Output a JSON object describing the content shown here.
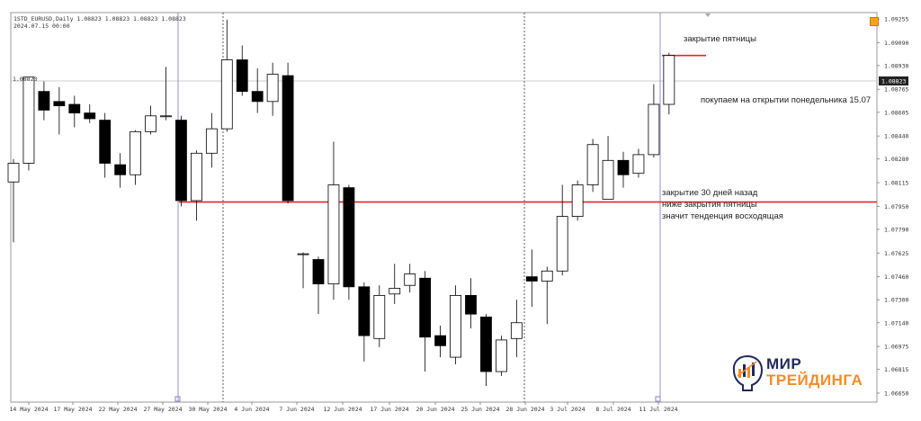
{
  "header": {
    "title": "1STD_EURUSD,Daily  1.08823 1.08823 1.08823 1.08823",
    "datetime": "2024.07.15 00:00"
  },
  "current_price": "1.08823",
  "left_price_label": "1.08823",
  "annotations": {
    "friday_close": "закрытие пятницы",
    "buy_monday": "покупаем на открытии понедельника 15.07",
    "close_30_days": "закрытие 30 дней назад",
    "below_friday": "ниже закрытия пятницы",
    "uptrend": "значит тенденция восходящая"
  },
  "logo": {
    "line1": "МИР",
    "line2": "ТРЕЙДИНГА"
  },
  "colors": {
    "bull": "#ffffff",
    "bear": "#000000",
    "level": "#e8242c",
    "vline_period": "#8a84c8",
    "vline_dotted": "#333333"
  },
  "chart_data": {
    "type": "candlestick",
    "symbol": "1STD_EURUSD",
    "timeframe": "Daily",
    "y_ticks": [
      "1.09255",
      "1.09090",
      "1.08930",
      "1.08765",
      "1.08605",
      "1.08440",
      "1.08280",
      "1.08115",
      "1.07950",
      "1.07790",
      "1.07625",
      "1.07460",
      "1.07300",
      "1.07140",
      "1.06975",
      "1.06815",
      "1.06650"
    ],
    "x_ticks": [
      "14 May 2024",
      "17 May 2024",
      "22 May 2024",
      "27 May 2024",
      "30 May 2024",
      "4 Jun 2024",
      "7 Jun 2024",
      "12 Jun 2024",
      "17 Jun 2024",
      "20 Jun 2024",
      "25 Jun 2024",
      "28 Jun 2024",
      "3 Jul 2024",
      "8 Jul 2024",
      "11 Jul 2024"
    ],
    "levels": [
      {
        "label": "закрытие пятницы",
        "value": 1.09
      },
      {
        "label": "закрытие 30 дней назад",
        "value": 1.0798
      }
    ],
    "candles": [
      {
        "o": 1.0812,
        "h": 1.0828,
        "l": 1.077,
        "c": 1.0825
      },
      {
        "o": 1.0825,
        "h": 1.0885,
        "l": 1.082,
        "c": 1.0885
      },
      {
        "o": 1.0875,
        "h": 1.0882,
        "l": 1.0855,
        "c": 1.0862
      },
      {
        "o": 1.0868,
        "h": 1.0878,
        "l": 1.0845,
        "c": 1.0865
      },
      {
        "o": 1.0866,
        "h": 1.0872,
        "l": 1.085,
        "c": 1.086
      },
      {
        "o": 1.086,
        "h": 1.0866,
        "l": 1.0853,
        "c": 1.0856
      },
      {
        "o": 1.0855,
        "h": 1.086,
        "l": 1.0815,
        "c": 1.0825
      },
      {
        "o": 1.0824,
        "h": 1.0832,
        "l": 1.0808,
        "c": 1.0817
      },
      {
        "o": 1.0817,
        "h": 1.0848,
        "l": 1.081,
        "c": 1.0847
      },
      {
        "o": 1.0847,
        "h": 1.0865,
        "l": 1.0845,
        "c": 1.0858
      },
      {
        "o": 1.0858,
        "h": 1.0892,
        "l": 1.0855,
        "c": 1.0858
      },
      {
        "o": 1.0855,
        "h": 1.0858,
        "l": 1.0795,
        "c": 1.0799
      },
      {
        "o": 1.0799,
        "h": 1.0834,
        "l": 1.0785,
        "c": 1.0832
      },
      {
        "o": 1.0832,
        "h": 1.086,
        "l": 1.0822,
        "c": 1.0849
      },
      {
        "o": 1.0849,
        "h": 1.0925,
        "l": 1.0847,
        "c": 1.0897
      },
      {
        "o": 1.0897,
        "h": 1.0907,
        "l": 1.0872,
        "c": 1.0875
      },
      {
        "o": 1.0875,
        "h": 1.0891,
        "l": 1.086,
        "c": 1.0868
      },
      {
        "o": 1.0868,
        "h": 1.0895,
        "l": 1.0858,
        "c": 1.0887
      },
      {
        "o": 1.0886,
        "h": 1.0895,
        "l": 1.0797,
        "c": 1.0799
      },
      {
        "o": 1.0762,
        "h": 1.0763,
        "l": 1.0738,
        "c": 1.0762
      },
      {
        "o": 1.0758,
        "h": 1.076,
        "l": 1.072,
        "c": 1.0741
      },
      {
        "o": 1.0741,
        "h": 1.084,
        "l": 1.073,
        "c": 1.081
      },
      {
        "o": 1.0808,
        "h": 1.081,
        "l": 1.073,
        "c": 1.0739
      },
      {
        "o": 1.0739,
        "h": 1.0742,
        "l": 1.0687,
        "c": 1.0705
      },
      {
        "o": 1.0703,
        "h": 1.074,
        "l": 1.0697,
        "c": 1.0733
      },
      {
        "o": 1.0734,
        "h": 1.0755,
        "l": 1.0727,
        "c": 1.0738
      },
      {
        "o": 1.074,
        "h": 1.0755,
        "l": 1.0735,
        "c": 1.0748
      },
      {
        "o": 1.0745,
        "h": 1.075,
        "l": 1.068,
        "c": 1.0704
      },
      {
        "o": 1.0705,
        "h": 1.0712,
        "l": 1.069,
        "c": 1.0698
      },
      {
        "o": 1.069,
        "h": 1.074,
        "l": 1.0685,
        "c": 1.0733
      },
      {
        "o": 1.0733,
        "h": 1.0745,
        "l": 1.071,
        "c": 1.072
      },
      {
        "o": 1.0718,
        "h": 1.072,
        "l": 1.067,
        "c": 1.068
      },
      {
        "o": 1.068,
        "h": 1.0705,
        "l": 1.0677,
        "c": 1.0702
      },
      {
        "o": 1.0703,
        "h": 1.073,
        "l": 1.069,
        "c": 1.0714
      },
      {
        "o": 1.0746,
        "h": 1.0765,
        "l": 1.0725,
        "c": 1.0743
      },
      {
        "o": 1.0743,
        "h": 1.0753,
        "l": 1.0713,
        "c": 1.075
      },
      {
        "o": 1.075,
        "h": 1.081,
        "l": 1.0747,
        "c": 1.0788
      },
      {
        "o": 1.0788,
        "h": 1.0813,
        "l": 1.0785,
        "c": 1.081
      },
      {
        "o": 1.081,
        "h": 1.0842,
        "l": 1.0805,
        "c": 1.0838
      },
      {
        "o": 1.08,
        "h": 1.0844,
        "l": 1.08,
        "c": 1.0827
      },
      {
        "o": 1.0827,
        "h": 1.0833,
        "l": 1.0808,
        "c": 1.0817
      },
      {
        "o": 1.0818,
        "h": 1.0835,
        "l": 1.0815,
        "c": 1.0831
      },
      {
        "o": 1.0831,
        "h": 1.088,
        "l": 1.0829,
        "c": 1.0866
      },
      {
        "o": 1.0866,
        "h": 1.0902,
        "l": 1.0859,
        "c": 1.09
      }
    ]
  }
}
